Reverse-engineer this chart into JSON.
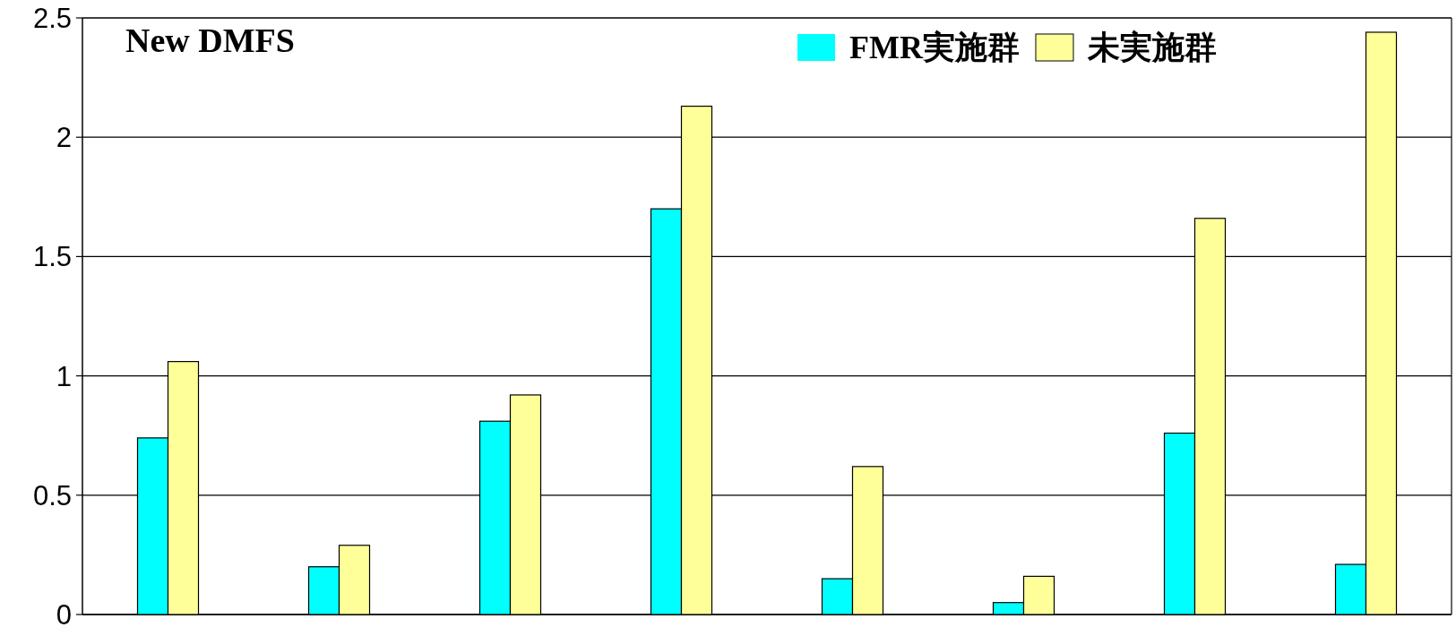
{
  "chart_data": {
    "type": "bar",
    "title": "New DMFS",
    "categories": [
      null,
      null,
      null,
      null,
      null,
      null,
      null,
      null
    ],
    "series": [
      {
        "name": "FMR実施群",
        "color": "#00ffff",
        "values": [
          0.74,
          0.2,
          0.81,
          1.7,
          0.15,
          0.05,
          0.76,
          0.21
        ]
      },
      {
        "name": "未実施群",
        "color": "#ffff99",
        "values": [
          1.06,
          0.29,
          0.92,
          2.13,
          0.62,
          0.16,
          1.66,
          2.44
        ]
      }
    ],
    "ylim": [
      0,
      2.5
    ],
    "yticks": [
      0,
      0.5,
      1,
      1.5,
      2,
      2.5
    ],
    "grid": "y",
    "legend": "top right"
  }
}
